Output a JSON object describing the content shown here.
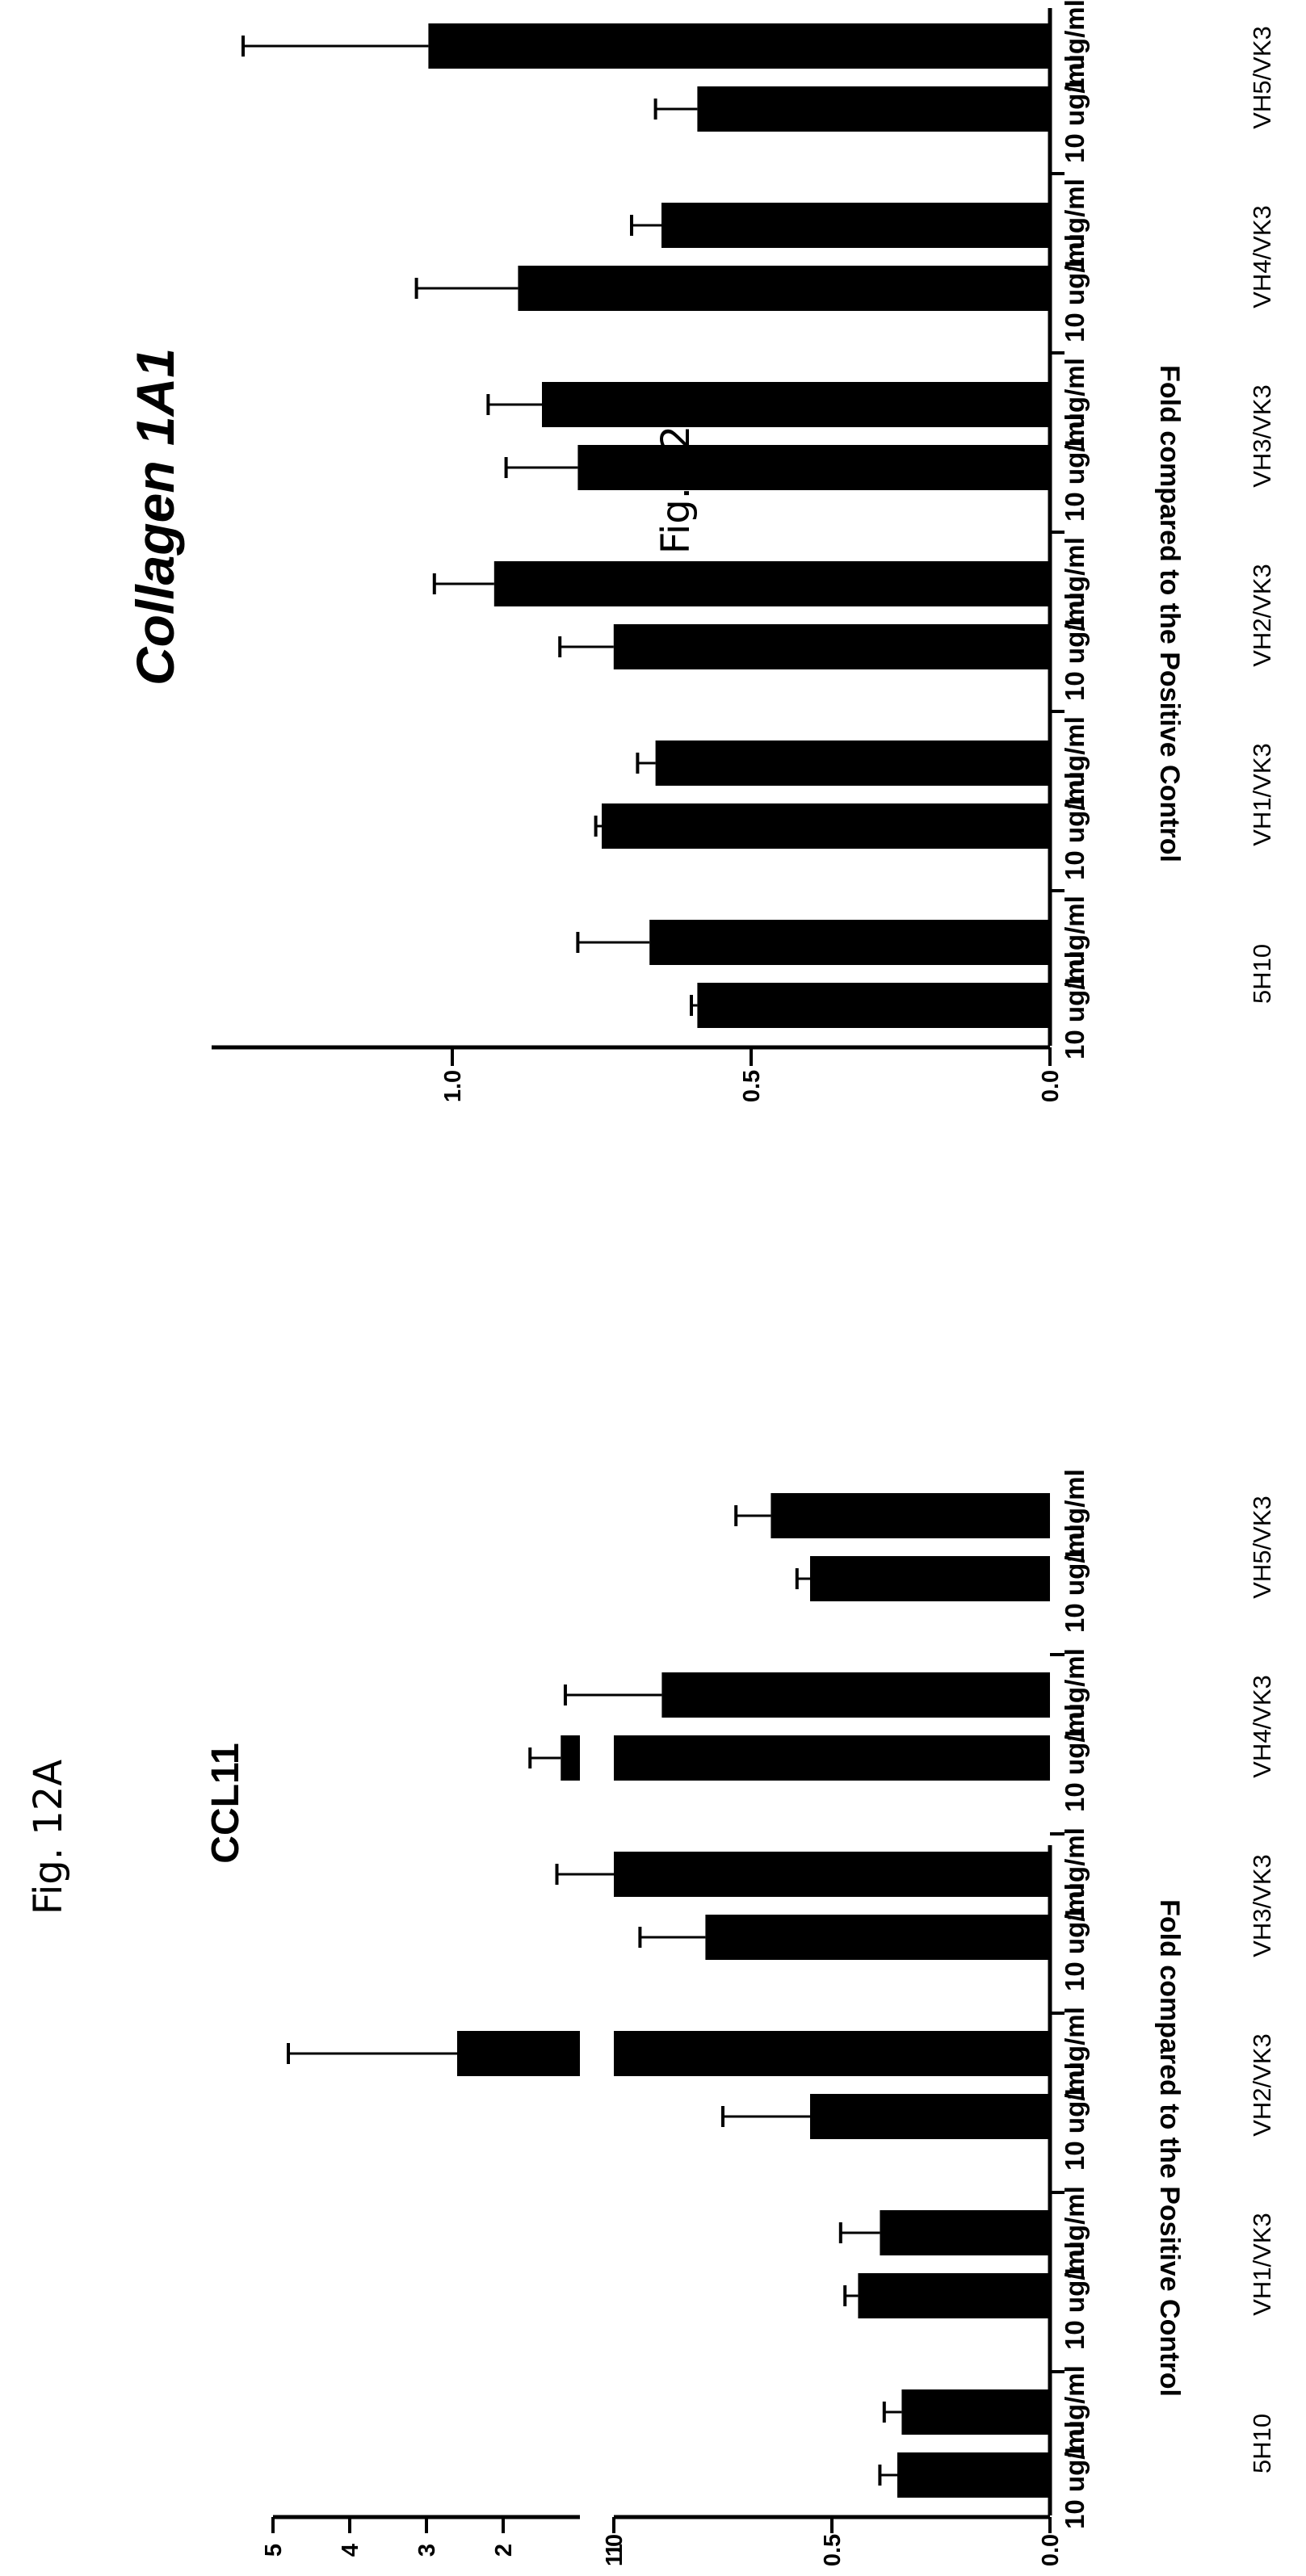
{
  "figures": [
    {
      "label": "Fig. 12A"
    },
    {
      "label": "Fig. 12B"
    }
  ],
  "chart_data": [
    {
      "type": "bar",
      "title": "CCL11",
      "ylabel": "Fold compared to the Positive Control",
      "broken_axis": true,
      "ylim_lower": [
        0,
        1.0
      ],
      "ylim_upper": [
        1,
        5
      ],
      "yticks_lower": [
        "0.0",
        "0.5",
        "1.0"
      ],
      "yticks_upper": [
        "1",
        "2",
        "3",
        "4",
        "5"
      ],
      "groups": [
        "5H10",
        "VH1/VK3",
        "VH2/VK3",
        "VH3/VK3",
        "VH4/VK3",
        "VH5/VK3"
      ],
      "categories": [
        "10 ug/ml",
        "1 ug/ml"
      ],
      "values": [
        [
          0.35,
          0.34
        ],
        [
          0.44,
          0.39
        ],
        [
          0.55,
          2.6
        ],
        [
          0.79,
          1.0
        ],
        [
          1.25,
          0.89
        ],
        [
          0.55,
          0.64
        ]
      ],
      "errors": [
        [
          0.04,
          0.04
        ],
        [
          0.03,
          0.09
        ],
        [
          0.2,
          2.2
        ],
        [
          0.15,
          0.3
        ],
        [
          0.4,
          0.3
        ],
        [
          0.03,
          0.08
        ]
      ]
    },
    {
      "type": "bar",
      "title": "Collagen 1A1",
      "ylabel": "Fold compared to the Positive Control",
      "ylim": [
        0,
        1.4
      ],
      "yticks": [
        "0.0",
        "0.5",
        "1.0"
      ],
      "groups": [
        "5H10",
        "VH1/VK3",
        "VH2/VK3",
        "VH3/VK3",
        "VH4/VK3",
        "VH5/VK3"
      ],
      "categories": [
        "10 ug/ml",
        "1 ug/ml"
      ],
      "values": [
        [
          0.59,
          0.67
        ],
        [
          0.75,
          0.66
        ],
        [
          0.73,
          0.93
        ],
        [
          0.79,
          0.85
        ],
        [
          0.89,
          0.65
        ],
        [
          0.59,
          1.04
        ]
      ],
      "errors": [
        [
          0.01,
          0.12
        ],
        [
          0.01,
          0.03
        ],
        [
          0.09,
          0.1
        ],
        [
          0.12,
          0.09
        ],
        [
          0.17,
          0.05
        ],
        [
          0.07,
          0.31
        ]
      ]
    }
  ]
}
